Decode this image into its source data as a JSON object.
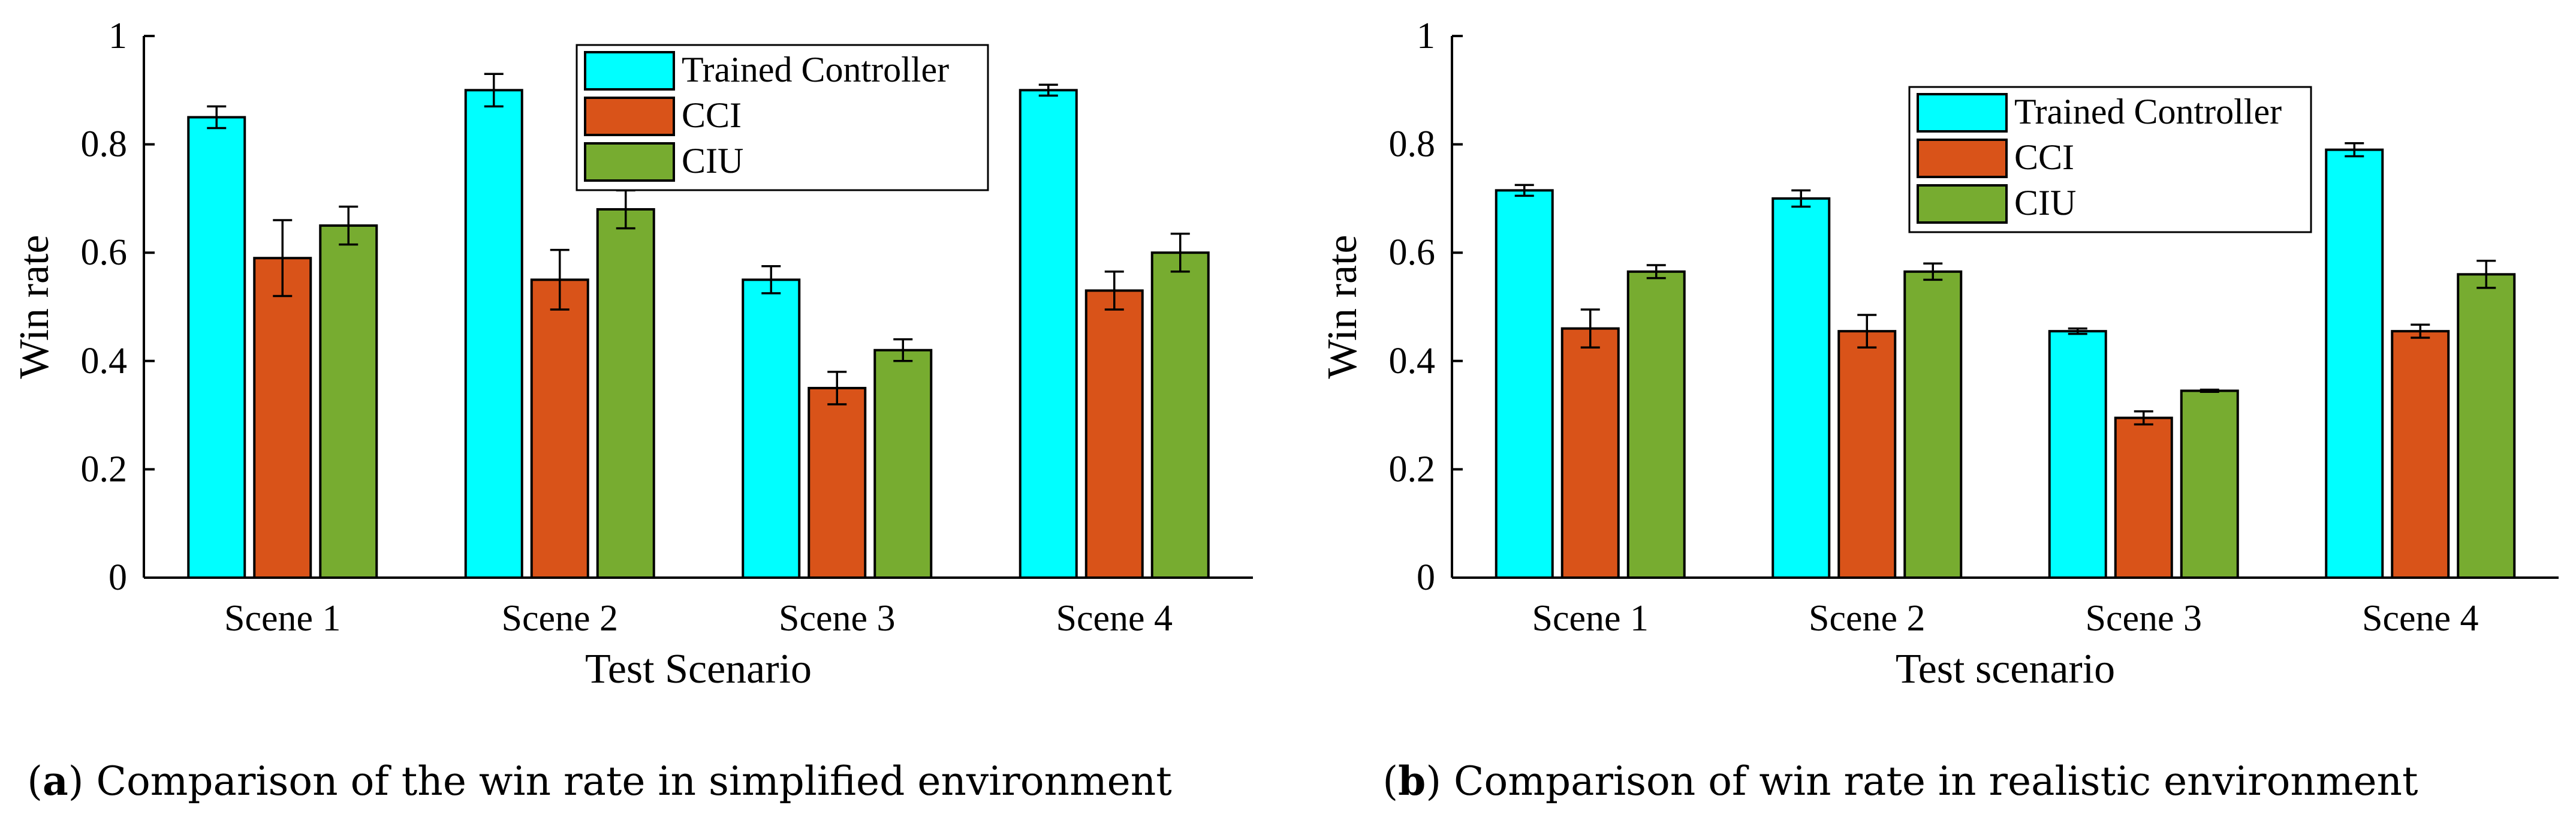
{
  "colors": {
    "trained": "#00FFFF",
    "cci": "#D95319",
    "ciu": "#77AC30",
    "axis": "#000000"
  },
  "chart_data": [
    {
      "type": "bar",
      "caption_label": "a",
      "caption_text": " Comparison of the win rate in simplified environment",
      "xlabel": "Test Scenario",
      "ylabel": "Win rate",
      "ylim": [
        0,
        1
      ],
      "yticks": [
        "0",
        "0.2",
        "0.4",
        "0.6",
        "0.8",
        "1"
      ],
      "categories": [
        "Scene 1",
        "Scene 2",
        "Scene 3",
        "Scene 4"
      ],
      "legend_position": "top-right",
      "series": [
        {
          "name": "Trained Controller",
          "color_key": "trained",
          "values": [
            0.85,
            0.9,
            0.55,
            0.9
          ],
          "errors": [
            0.02,
            0.03,
            0.025,
            0.01
          ]
        },
        {
          "name": "CCI",
          "color_key": "cci",
          "values": [
            0.59,
            0.55,
            0.35,
            0.53
          ],
          "errors": [
            0.07,
            0.055,
            0.03,
            0.035
          ]
        },
        {
          "name": "CIU",
          "color_key": "ciu",
          "values": [
            0.65,
            0.68,
            0.42,
            0.6
          ],
          "errors": [
            0.035,
            0.035,
            0.02,
            0.035
          ]
        }
      ]
    },
    {
      "type": "bar",
      "caption_label": "b",
      "caption_text": " Comparison of win rate in realistic environment",
      "xlabel": "Test scenario",
      "ylabel": "Win rate",
      "ylim": [
        0,
        1
      ],
      "yticks": [
        "0",
        "0.2",
        "0.4",
        "0.6",
        "0.8",
        "1"
      ],
      "categories": [
        "Scene 1",
        "Scene 2",
        "Scene 3",
        "Scene 4"
      ],
      "legend_position": "top-right",
      "series": [
        {
          "name": "Trained Controller",
          "color_key": "trained",
          "values": [
            0.715,
            0.7,
            0.455,
            0.79
          ],
          "errors": [
            0.01,
            0.015,
            0.005,
            0.012
          ]
        },
        {
          "name": "CCI",
          "color_key": "cci",
          "values": [
            0.46,
            0.455,
            0.295,
            0.455
          ],
          "errors": [
            0.035,
            0.03,
            0.012,
            0.012
          ]
        },
        {
          "name": "CIU",
          "color_key": "ciu",
          "values": [
            0.565,
            0.565,
            0.345,
            0.56
          ],
          "errors": [
            0.012,
            0.015,
            0.002,
            0.025
          ]
        }
      ]
    }
  ]
}
